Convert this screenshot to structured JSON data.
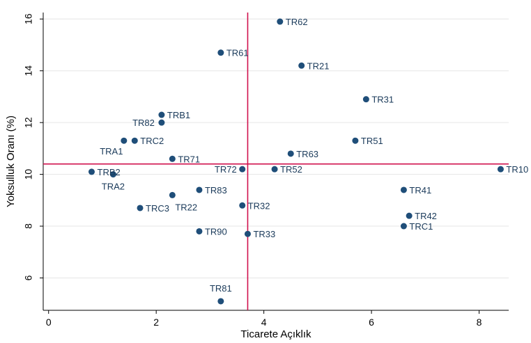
{
  "chart_data": {
    "type": "scatter",
    "title": "",
    "xlabel": "Ticarete Açıklık",
    "ylabel": "Yoksulluk Oranı (%)",
    "xlim": [
      -0.1,
      8.55
    ],
    "ylim": [
      4.75,
      16.25
    ],
    "xticks": [
      0,
      2,
      4,
      6,
      8
    ],
    "yticks": [
      6,
      8,
      10,
      12,
      14,
      16
    ],
    "grid": true,
    "legend": "none",
    "point_color": "#1f4e79",
    "ref_line_color": "#d0104c",
    "ref_lines": {
      "x": 3.7,
      "y": 10.4
    },
    "points": [
      {
        "label": "TR62",
        "x": 4.3,
        "y": 15.9
      },
      {
        "label": "TR61",
        "x": 3.2,
        "y": 14.7
      },
      {
        "label": "TR21",
        "x": 4.7,
        "y": 14.2
      },
      {
        "label": "TR31",
        "x": 5.9,
        "y": 12.9
      },
      {
        "label": "TRB1",
        "x": 2.1,
        "y": 12.3
      },
      {
        "label": "TR82",
        "x": 2.1,
        "y": 12.0
      },
      {
        "label": "TRA1",
        "x": 1.4,
        "y": 11.3
      },
      {
        "label": "TRC2",
        "x": 1.6,
        "y": 11.3
      },
      {
        "label": "TR51",
        "x": 5.7,
        "y": 11.3
      },
      {
        "label": "TR63",
        "x": 4.5,
        "y": 10.8
      },
      {
        "label": "TR71",
        "x": 2.3,
        "y": 10.6
      },
      {
        "label": "TRB2",
        "x": 0.8,
        "y": 10.1
      },
      {
        "label": "TRA2",
        "x": 1.2,
        "y": 10.0
      },
      {
        "label": "TR72",
        "x": 3.6,
        "y": 10.2
      },
      {
        "label": "TR52",
        "x": 4.2,
        "y": 10.2
      },
      {
        "label": "TR10",
        "x": 8.4,
        "y": 10.2
      },
      {
        "label": "TR41",
        "x": 6.6,
        "y": 9.4
      },
      {
        "label": "TR83",
        "x": 2.8,
        "y": 9.4
      },
      {
        "label": "TR22",
        "x": 2.3,
        "y": 9.2
      },
      {
        "label": "TRC3",
        "x": 1.7,
        "y": 8.7
      },
      {
        "label": "TR32",
        "x": 3.6,
        "y": 8.8
      },
      {
        "label": "TR42",
        "x": 6.7,
        "y": 8.4
      },
      {
        "label": "TRC1",
        "x": 6.6,
        "y": 8.0
      },
      {
        "label": "TR90",
        "x": 2.8,
        "y": 7.8
      },
      {
        "label": "TR33",
        "x": 3.7,
        "y": 7.7
      },
      {
        "label": "TR81",
        "x": 3.2,
        "y": 5.1
      }
    ]
  }
}
